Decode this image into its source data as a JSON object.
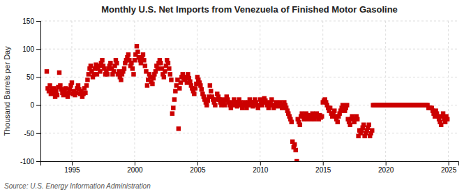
{
  "chart_data": {
    "type": "scatter",
    "title": "Monthly U.S. Net Imports from Venezuela of Finished Motor Gasoline",
    "ylabel": "Thousand Barrels per Day",
    "annotations": [
      "Source: U.S. Energy Information Administration"
    ],
    "xlim": [
      1992.5,
      2025.8
    ],
    "ylim": [
      -100,
      150
    ],
    "xticks": [
      1995,
      2000,
      2005,
      2010,
      2015,
      2020,
      2025
    ],
    "yticks": [
      -100,
      -50,
      0,
      50,
      100,
      150
    ],
    "grid": true,
    "color": "#CC0000",
    "marker": "square",
    "x": [
      1993.0,
      1993.08,
      1993.17,
      1993.25,
      1993.33,
      1993.42,
      1993.5,
      1993.58,
      1993.67,
      1993.75,
      1993.83,
      1993.92,
      1994.0,
      1994.08,
      1994.17,
      1994.25,
      1994.33,
      1994.42,
      1994.5,
      1994.58,
      1994.67,
      1994.75,
      1994.83,
      1994.92,
      1995.0,
      1995.08,
      1995.17,
      1995.25,
      1995.33,
      1995.42,
      1995.5,
      1995.58,
      1995.67,
      1995.75,
      1995.83,
      1995.92,
      1996.0,
      1996.08,
      1996.17,
      1996.25,
      1996.33,
      1996.42,
      1996.5,
      1996.58,
      1996.67,
      1996.75,
      1996.83,
      1996.92,
      1997.0,
      1997.08,
      1997.17,
      1997.25,
      1997.33,
      1997.42,
      1997.5,
      1997.58,
      1997.67,
      1997.75,
      1997.83,
      1997.92,
      1998.0,
      1998.08,
      1998.17,
      1998.25,
      1998.33,
      1998.42,
      1998.5,
      1998.58,
      1998.67,
      1998.75,
      1998.83,
      1998.92,
      1999.0,
      1999.08,
      1999.17,
      1999.25,
      1999.33,
      1999.42,
      1999.5,
      1999.58,
      1999.67,
      1999.75,
      1999.83,
      1999.92,
      2000.0,
      2000.08,
      2000.17,
      2000.25,
      2000.33,
      2000.42,
      2000.5,
      2000.58,
      2000.67,
      2000.75,
      2000.83,
      2000.92,
      2001.0,
      2001.08,
      2001.17,
      2001.25,
      2001.33,
      2001.42,
      2001.5,
      2001.58,
      2001.67,
      2001.75,
      2001.83,
      2001.92,
      2002.0,
      2002.08,
      2002.17,
      2002.25,
      2002.33,
      2002.42,
      2002.5,
      2002.58,
      2002.67,
      2002.75,
      2002.83,
      2002.92,
      2003.0,
      2003.08,
      2003.17,
      2003.25,
      2003.33,
      2003.42,
      2003.5,
      2003.58,
      2003.67,
      2003.75,
      2003.83,
      2003.92,
      2004.0,
      2004.08,
      2004.17,
      2004.25,
      2004.33,
      2004.42,
      2004.5,
      2004.58,
      2004.67,
      2004.75,
      2004.83,
      2004.92,
      2005.0,
      2005.08,
      2005.17,
      2005.25,
      2005.33,
      2005.42,
      2005.5,
      2005.58,
      2005.67,
      2005.75,
      2005.83,
      2005.92,
      2006.0,
      2006.08,
      2006.17,
      2006.25,
      2006.33,
      2006.42,
      2006.5,
      2006.58,
      2006.67,
      2006.75,
      2006.83,
      2006.92,
      2007.0,
      2007.08,
      2007.17,
      2007.25,
      2007.33,
      2007.42,
      2007.5,
      2007.58,
      2007.67,
      2007.75,
      2007.83,
      2007.92,
      2008.0,
      2008.08,
      2008.17,
      2008.25,
      2008.33,
      2008.42,
      2008.5,
      2008.58,
      2008.67,
      2008.75,
      2008.83,
      2008.92,
      2009.0,
      2009.08,
      2009.17,
      2009.25,
      2009.33,
      2009.42,
      2009.5,
      2009.58,
      2009.67,
      2009.75,
      2009.83,
      2009.92,
      2010.0,
      2010.08,
      2010.17,
      2010.25,
      2010.33,
      2010.42,
      2010.5,
      2010.58,
      2010.67,
      2010.75,
      2010.83,
      2010.92,
      2011.0,
      2011.08,
      2011.17,
      2011.25,
      2011.33,
      2011.42,
      2011.5,
      2011.58,
      2011.67,
      2011.75,
      2011.83,
      2011.92,
      2012.0,
      2012.08,
      2012.17,
      2012.25,
      2012.33,
      2012.42,
      2012.5,
      2012.58,
      2012.67,
      2012.75,
      2012.83,
      2012.92,
      2013.0,
      2013.08,
      2013.17,
      2013.25,
      2013.33,
      2013.42,
      2013.5,
      2013.58,
      2013.67,
      2013.75,
      2013.83,
      2013.92,
      2014.0,
      2014.08,
      2014.17,
      2014.25,
      2014.33,
      2014.42,
      2014.5,
      2014.58,
      2014.67,
      2014.75,
      2014.83,
      2014.92,
      2015.0,
      2015.08,
      2015.17,
      2015.25,
      2015.33,
      2015.42,
      2015.5,
      2015.58,
      2015.67,
      2015.75,
      2015.83,
      2015.92,
      2016.0,
      2016.08,
      2016.17,
      2016.25,
      2016.33,
      2016.42,
      2016.5,
      2016.58,
      2016.67,
      2016.75,
      2016.83,
      2016.92,
      2017.0,
      2017.08,
      2017.17,
      2017.25,
      2017.33,
      2017.42,
      2017.5,
      2017.58,
      2017.67,
      2017.75,
      2017.83,
      2017.92,
      2018.0,
      2018.08,
      2018.17,
      2018.25,
      2018.33,
      2018.42,
      2018.5,
      2018.58,
      2018.67,
      2018.75,
      2018.83,
      2018.92,
      2019.0,
      2019.08,
      2019.17,
      2019.25,
      2019.33,
      2019.42,
      2019.5,
      2019.58,
      2019.67,
      2019.75,
      2019.83,
      2019.92,
      2020.0,
      2020.08,
      2020.17,
      2020.25,
      2020.33,
      2020.42,
      2020.5,
      2020.58,
      2020.67,
      2020.75,
      2020.83,
      2020.92,
      2021.0,
      2021.08,
      2021.17,
      2021.25,
      2021.33,
      2021.42,
      2021.5,
      2021.58,
      2021.67,
      2021.75,
      2021.83,
      2021.92,
      2022.0,
      2022.08,
      2022.17,
      2022.25,
      2022.33,
      2022.42,
      2022.5,
      2022.58,
      2022.67,
      2022.75,
      2022.83,
      2022.92,
      2023.0,
      2023.08,
      2023.17,
      2023.25,
      2023.33,
      2023.42,
      2023.5,
      2023.58,
      2023.67,
      2023.75,
      2023.83,
      2023.92,
      2024.0,
      2024.08,
      2024.17,
      2024.25,
      2024.33,
      2024.42,
      2024.5,
      2024.58,
      2024.67,
      2024.75,
      2024.83,
      2024.92
    ],
    "values": [
      60,
      30,
      25,
      35,
      20,
      28,
      22,
      30,
      15,
      25,
      18,
      32,
      58,
      35,
      28,
      22,
      18,
      25,
      30,
      20,
      15,
      22,
      28,
      35,
      40,
      20,
      25,
      18,
      22,
      30,
      35,
      28,
      20,
      25,
      15,
      20,
      30,
      22,
      35,
      45,
      55,
      65,
      70,
      60,
      50,
      55,
      65,
      72,
      55,
      65,
      70,
      60,
      75,
      80,
      70,
      65,
      55,
      60,
      55,
      65,
      70,
      75,
      65,
      55,
      60,
      70,
      80,
      75,
      55,
      60,
      50,
      45,
      55,
      60,
      65,
      75,
      80,
      85,
      90,
      80,
      70,
      75,
      65,
      55,
      80,
      90,
      105,
      95,
      85,
      80,
      75,
      85,
      90,
      80,
      70,
      60,
      35,
      45,
      55,
      50,
      42,
      38,
      48,
      55,
      60,
      70,
      65,
      75,
      80,
      75,
      65,
      55,
      50,
      60,
      70,
      80,
      75,
      65,
      55,
      45,
      -15,
      -5,
      10,
      25,
      35,
      45,
      -42,
      30,
      40,
      50,
      55,
      48,
      45,
      50,
      40,
      55,
      48,
      42,
      35,
      30,
      25,
      20,
      30,
      38,
      50,
      45,
      40,
      35,
      28,
      20,
      15,
      10,
      5,
      0,
      8,
      15,
      35,
      25,
      15,
      10,
      5,
      0,
      10,
      20,
      15,
      10,
      5,
      0,
      10,
      5,
      0,
      8,
      15,
      10,
      5,
      0,
      -5,
      0,
      5,
      10,
      5,
      0,
      -2,
      5,
      10,
      5,
      0,
      -5,
      0,
      5,
      0,
      -5,
      0,
      5,
      10,
      5,
      0,
      -2,
      5,
      10,
      5,
      0,
      -5,
      0,
      10,
      5,
      0,
      5,
      12,
      8,
      5,
      0,
      -5,
      0,
      5,
      10,
      0,
      -5,
      0,
      5,
      0,
      -2,
      0,
      5,
      0,
      -5,
      0,
      5,
      0,
      -5,
      -10,
      -15,
      -20,
      -25,
      -30,
      -65,
      -75,
      -70,
      -80,
      -100,
      -25,
      -30,
      -35,
      -20,
      -15,
      -20,
      -25,
      -20,
      -15,
      -25,
      -18,
      -22,
      -20,
      -25,
      -15,
      -20,
      -25,
      -18,
      -15,
      -20,
      -25,
      -18,
      -22,
      -20,
      5,
      8,
      10,
      5,
      0,
      -5,
      -10,
      -5,
      -15,
      -20,
      -15,
      -10,
      -20,
      -25,
      -30,
      -20,
      -15,
      -10,
      -5,
      0,
      -5,
      -10,
      -5,
      0,
      -25,
      -30,
      -35,
      -25,
      -20,
      -25,
      -30,
      -25,
      -20,
      -25,
      -55,
      -45,
      -50,
      -45,
      -40,
      -35,
      -55,
      -50,
      -45,
      -40,
      -35,
      -55,
      -50,
      -45,
      0,
      0,
      0,
      0,
      0,
      0,
      0,
      0,
      0,
      0,
      0,
      0,
      0,
      0,
      0,
      0,
      0,
      0,
      0,
      0,
      0,
      0,
      0,
      0,
      0,
      0,
      0,
      0,
      0,
      0,
      0,
      0,
      0,
      0,
      0,
      0,
      0,
      0,
      0,
      0,
      0,
      0,
      0,
      0,
      0,
      0,
      0,
      0,
      0,
      0,
      0,
      0,
      0,
      -5,
      -5,
      -5,
      -5,
      -10,
      -15,
      -20,
      -10,
      -15,
      -20,
      -25,
      -30,
      -35,
      -20,
      -15,
      -25,
      -30,
      -20,
      -25
    ]
  }
}
